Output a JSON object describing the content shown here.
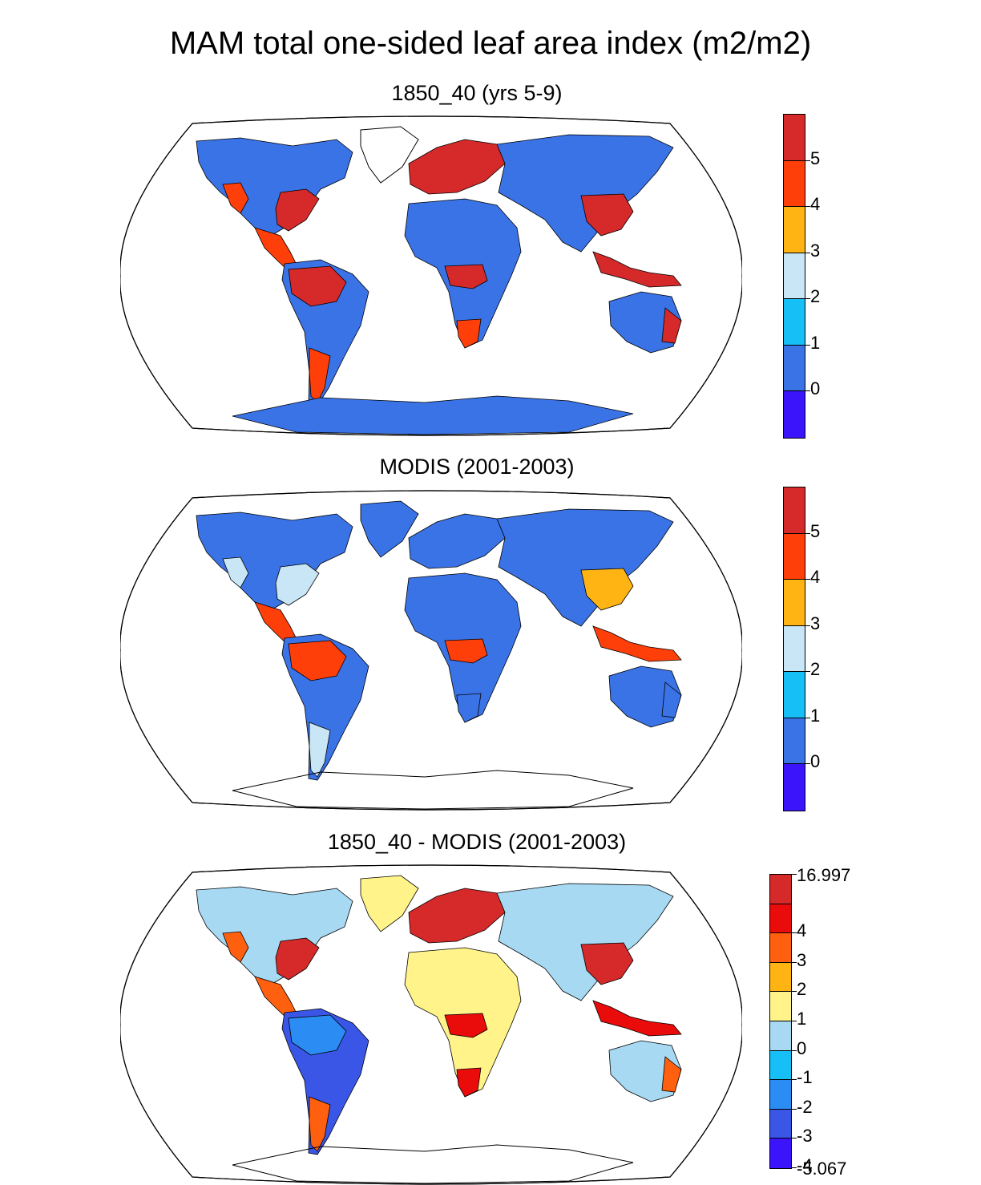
{
  "title": "MAM total one-sided leaf area index (m2/m2)",
  "panels": [
    {
      "id": "model",
      "title": "1850_40 (yrs 5-9)",
      "colorbar": {
        "labels": [
          "5",
          "4",
          "3",
          "2",
          "1",
          "0"
        ],
        "colors": [
          "#d62a2a",
          "#ff3f0a",
          "#ffb413",
          "#c8e6f6",
          "#17bff7",
          "#3a73e6",
          "#3b14fb"
        ]
      },
      "palette": {
        "0": "#3a73e6",
        "1": "#17bff7",
        "2": "#c8e6f6",
        "3": "#ffb413",
        "4": "#ff3f0a",
        "5": "#d62a2a"
      }
    },
    {
      "id": "modis",
      "title": "MODIS (2001-2003)",
      "colorbar": {
        "labels": [
          "5",
          "4",
          "3",
          "2",
          "1",
          "0"
        ],
        "colors": [
          "#d62a2a",
          "#ff3f0a",
          "#ffb413",
          "#c8e6f6",
          "#17bff7",
          "#3a73e6",
          "#3b14fb"
        ]
      },
      "palette": {
        "0": "#3a73e6",
        "1": "#17bff7",
        "2": "#c8e6f6",
        "3": "#ffb413",
        "4": "#ff3f0a",
        "5": "#d62a2a"
      }
    },
    {
      "id": "diff",
      "title": "1850_40 - MODIS (2001-2003)",
      "colorbar": {
        "labels": [
          "16.997",
          "4",
          "3",
          "2",
          "1",
          "0",
          "-1",
          "-2",
          "-3",
          "-4",
          "-5.067"
        ],
        "colors": [
          "#d62a2a",
          "#ea0b0b",
          "#ff6010",
          "#ffb413",
          "#fff389",
          "#a7d9f2",
          "#17bff7",
          "#2b8cf3",
          "#3a56e6",
          "#3b14fb"
        ]
      },
      "palette": {
        "0": "#a7d9f2",
        "1": "#fff389",
        "2": "#ffb413",
        "3": "#ff6010",
        "4": "#ea0b0b",
        "5": "#d62a2a",
        "n": "#3a56e6",
        "m": "#2b8cf3"
      }
    }
  ],
  "map_data": {
    "projection": "Robinson",
    "fields": {
      "model": {
        "regions": [
          "NAm:0",
          "NAm_E:5",
          "NAm_W:4",
          "Green:none",
          "CAm:4",
          "SAm:0",
          "Amaz:5",
          "SAm_S:4",
          "Eur:5",
          "Asia:0",
          "China:5",
          "Afr:0",
          "Congo:5",
          "SAfr:4",
          "Aus:0",
          "AusE:5",
          "SEAsia:5",
          "Ant:0"
        ]
      },
      "modis": {
        "regions": [
          "NAm:0",
          "NAm_E:2",
          "NAm_W:2",
          "Green:0",
          "CAm:4",
          "SAm:0",
          "Amaz:4",
          "SAm_S:2",
          "Eur:0",
          "Asia:0",
          "China:3",
          "Afr:0",
          "Congo:4",
          "SAfr:0",
          "Aus:0",
          "AusE:0",
          "SEAsia:4",
          "Ant:none"
        ]
      },
      "diff": {
        "regions": [
          "NAm:0",
          "NAm_E:5",
          "NAm_W:3",
          "Green:1",
          "CAm:3",
          "SAm:n",
          "Amaz:m",
          "SAm_S:3",
          "Eur:5",
          "Asia:0",
          "China:5",
          "Afr:1",
          "Congo:4",
          "SAfr:4",
          "Aus:0",
          "AusE:3",
          "SEAsia:4",
          "Ant:none"
        ]
      }
    }
  }
}
